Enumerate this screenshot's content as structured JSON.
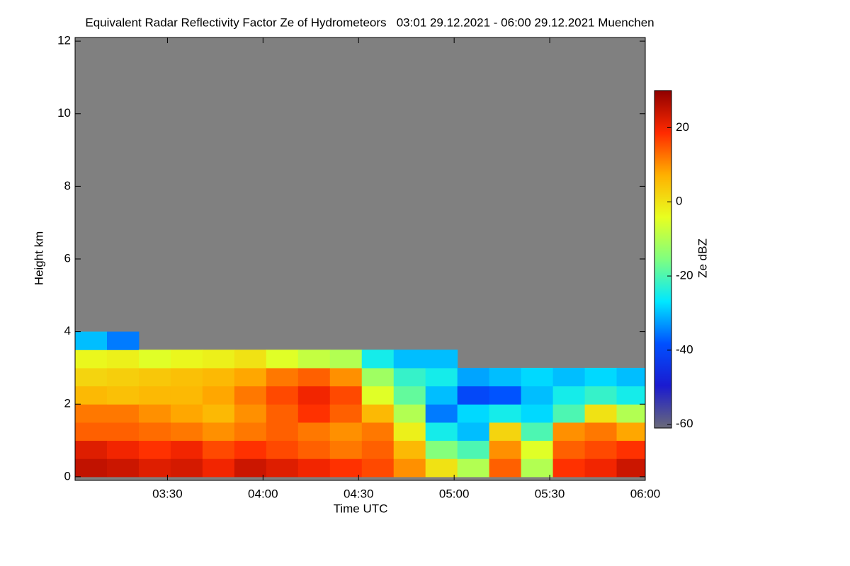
{
  "chart_data": {
    "type": "heatmap",
    "title": "Equivalent Radar Reflectivity Factor Ze of Hydrometeors   03:01 29.12.2021 - 06:00 29.12.2021 Muenchen",
    "x_label": "Time UTC",
    "y_label": "Height km",
    "colorbar_label": "Ze dBZ",
    "xlim": [
      181,
      360
    ],
    "xticks": [
      {
        "value": 210,
        "label": "03:30"
      },
      {
        "value": 240,
        "label": "04:00"
      },
      {
        "value": 270,
        "label": "04:30"
      },
      {
        "value": 300,
        "label": "05:00"
      },
      {
        "value": 330,
        "label": "05:30"
      },
      {
        "value": 360,
        "label": "06:00"
      }
    ],
    "ylim": [
      -0.1,
      12.1
    ],
    "yticks": [
      0,
      2,
      4,
      6,
      8,
      10,
      12
    ],
    "zlim": [
      -61,
      30
    ],
    "zticks": [
      -60,
      -40,
      -20,
      0,
      20
    ],
    "background_color": "#808080",
    "colormap": [
      "#6a6a78",
      "#1a1ad0",
      "#0050ff",
      "#00e8ff",
      "#7fff80",
      "#e8ff20",
      "#ffb000",
      "#ff2a00",
      "#900000"
    ],
    "x_edges": [
      181,
      191,
      201,
      211,
      221,
      231,
      241,
      251,
      261,
      271,
      281,
      291,
      301,
      311,
      321,
      331,
      341,
      351,
      360
    ],
    "y_edges": [
      0,
      0.5,
      1,
      1.5,
      2,
      2.5,
      3,
      3.5,
      4
    ],
    "values": [
      [
        25,
        22,
        14,
        12,
        6,
        2,
        -3,
        -30
      ],
      [
        24,
        20,
        14,
        12,
        5,
        3,
        -2,
        -35
      ],
      [
        22,
        18,
        13,
        10,
        6,
        4,
        -5,
        null
      ],
      [
        23,
        20,
        12,
        8,
        6,
        5,
        -3,
        null
      ],
      [
        20,
        16,
        10,
        6,
        8,
        6,
        -2,
        null
      ],
      [
        24,
        18,
        12,
        10,
        12,
        8,
        0,
        null
      ],
      [
        22,
        16,
        14,
        14,
        16,
        12,
        -5,
        null
      ],
      [
        20,
        14,
        12,
        18,
        20,
        14,
        -8,
        null
      ],
      [
        18,
        12,
        10,
        14,
        16,
        10,
        -10,
        null
      ],
      [
        16,
        14,
        12,
        6,
        -5,
        -12,
        -25,
        null
      ],
      [
        10,
        6,
        -2,
        -10,
        -18,
        -22,
        -30,
        null
      ],
      [
        0,
        -15,
        -25,
        -35,
        -30,
        -25,
        -30,
        null
      ],
      [
        -10,
        -20,
        -30,
        -28,
        -40,
        -32,
        null,
        null
      ],
      [
        14,
        10,
        2,
        -25,
        -38,
        -30,
        null,
        null
      ],
      [
        -10,
        -5,
        -20,
        -28,
        -30,
        -28,
        null,
        null
      ],
      [
        18,
        14,
        10,
        -20,
        -25,
        -30,
        null,
        null
      ],
      [
        20,
        16,
        12,
        0,
        -22,
        -28,
        null,
        null
      ],
      [
        24,
        18,
        8,
        -10,
        -25,
        -30,
        null,
        null
      ]
    ]
  }
}
